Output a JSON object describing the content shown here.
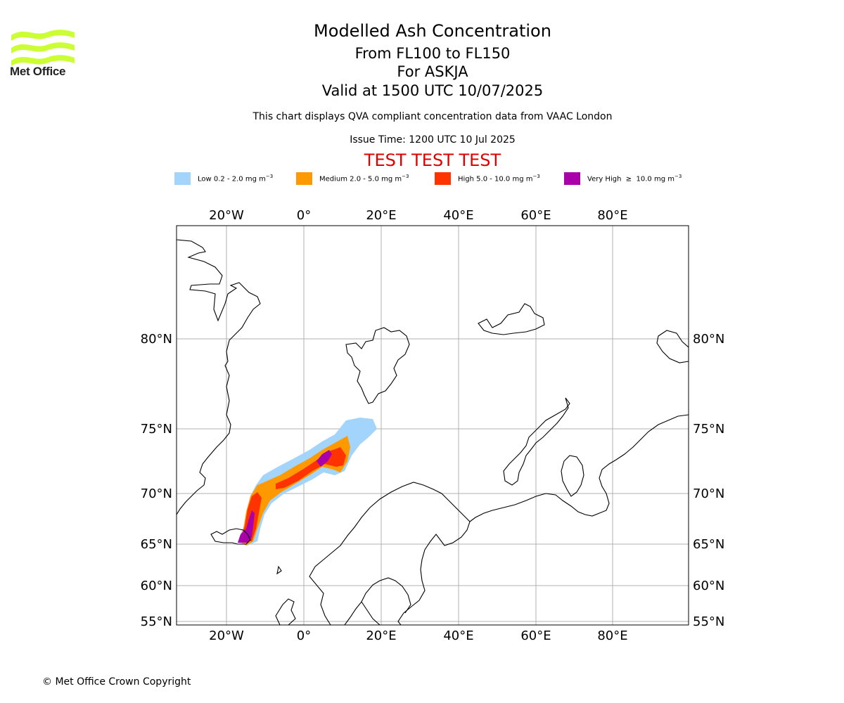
{
  "header": {
    "title": "Modelled Ash Concentration",
    "level_range": "From FL100 to FL150",
    "volcano": "For ASKJA",
    "valid_time": "Valid at 1500 UTC 10/07/2025",
    "description": "This chart displays QVA compliant concentration data from VAAC London",
    "issue_time": "Issue Time: 1200 UTC 10 Jul 2025",
    "test_banner": "TEST TEST TEST"
  },
  "logo": {
    "text": "Met Office",
    "color": "#ccff33"
  },
  "legend": [
    {
      "label": "Low 0.2 - 2.0 mg m",
      "unit_exp": "−3",
      "color": "#a3d4fb"
    },
    {
      "label": "Medium 2.0 - 5.0 mg m",
      "unit_exp": "−3",
      "color": "#ff9900"
    },
    {
      "label": "High 5.0 - 10.0 mg m",
      "unit_exp": "−3",
      "color": "#ff3300"
    },
    {
      "label": "Very High  ≥  10.0 mg m",
      "unit_exp": "−3",
      "color": "#aa00aa"
    }
  ],
  "map": {
    "lon_ticks": [
      "20°W",
      "0°",
      "20°E",
      "40°E",
      "60°E",
      "80°E"
    ],
    "lat_ticks": [
      "80°N",
      "75°N",
      "70°N",
      "65°N",
      "60°N",
      "55°N"
    ],
    "grid": true
  },
  "footer": {
    "copyright": "© Met Office Crown Copyright"
  }
}
